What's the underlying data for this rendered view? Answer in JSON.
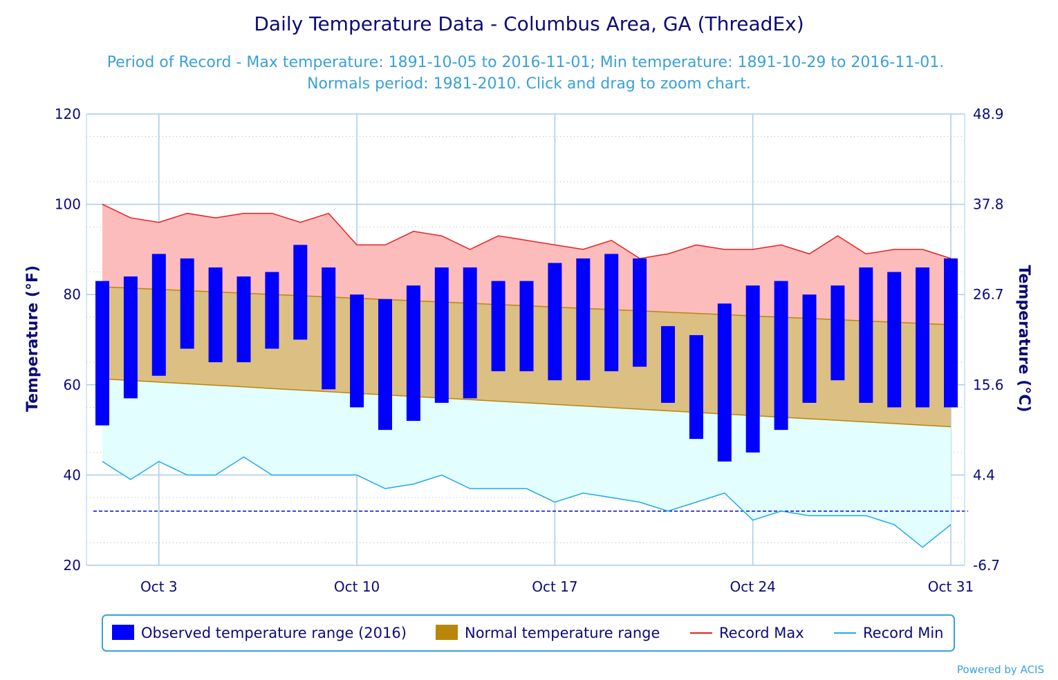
{
  "chart_data": {
    "type": "bar",
    "title": "Daily Temperature Data - Columbus Area, GA (ThreadEx)",
    "subtitle_lines": [
      "Period of Record - Max temperature: 1891-10-05 to 2016-11-01; Min temperature: 1891-10-29 to 2016-11-01.",
      "Normals period: 1981-2010. Click and drag to zoom chart."
    ],
    "ylabel": "Temperature (°F)",
    "ylabel_right": "Temperature (°C)",
    "ylim": [
      20,
      120
    ],
    "y_ticks": [
      20,
      40,
      60,
      80,
      100,
      120
    ],
    "y_ticks_right": [
      "-6.7",
      "4.4",
      "15.6",
      "26.7",
      "37.8",
      "48.9"
    ],
    "x_ticks": [
      {
        "day": 3,
        "label": "Oct 3"
      },
      {
        "day": 10,
        "label": "Oct 10"
      },
      {
        "day": 17,
        "label": "Oct 17"
      },
      {
        "day": 24,
        "label": "Oct 24"
      },
      {
        "day": 31,
        "label": "Oct 31"
      }
    ],
    "freezing_line": 32,
    "grid": true,
    "legend_position": "bottom",
    "days": [
      1,
      2,
      3,
      4,
      5,
      6,
      7,
      8,
      9,
      10,
      11,
      12,
      13,
      14,
      15,
      16,
      17,
      18,
      19,
      20,
      21,
      22,
      23,
      24,
      25,
      26,
      27,
      28,
      29,
      30,
      31
    ],
    "series": [
      {
        "name": "Observed temperature range (2016)",
        "kind": "range-bar",
        "color": "#0000ff",
        "high": [
          83,
          84,
          89,
          88,
          86,
          84,
          85,
          91,
          86,
          80,
          79,
          82,
          86,
          86,
          83,
          83,
          87,
          88,
          89,
          88,
          73,
          71,
          78,
          82,
          83,
          80,
          82,
          86,
          85,
          86,
          88
        ],
        "low": [
          51,
          57,
          62,
          68,
          65,
          65,
          68,
          70,
          59,
          55,
          50,
          52,
          56,
          57,
          63,
          63,
          61,
          61,
          63,
          64,
          56,
          48,
          43,
          45,
          50,
          56,
          61,
          56,
          55,
          55,
          55
        ]
      },
      {
        "name": "Normal temperature range",
        "kind": "range-area",
        "color": "#b8860b",
        "high_start": 81.7,
        "high_end": 73.3,
        "low_start": 61.3,
        "low_end": 50.7
      },
      {
        "name": "Record Max",
        "kind": "line",
        "color": "#e82020",
        "values": [
          100,
          97,
          96,
          98,
          97,
          98,
          98,
          96,
          98,
          91,
          91,
          94,
          93,
          90,
          93,
          92,
          91,
          90,
          92,
          88,
          89,
          91,
          90,
          90,
          91,
          89,
          93,
          89,
          90,
          90,
          88
        ]
      },
      {
        "name": "Record Min",
        "kind": "line",
        "color": "#22a8e8",
        "values": [
          43,
          39,
          43,
          40,
          40,
          44,
          40,
          40,
          40,
          40,
          37,
          38,
          40,
          37,
          37,
          37,
          34,
          36,
          35,
          34,
          32,
          34,
          36,
          30,
          32,
          31,
          31,
          31,
          29,
          24,
          29
        ]
      }
    ],
    "credit": "Powered by ACIS"
  }
}
